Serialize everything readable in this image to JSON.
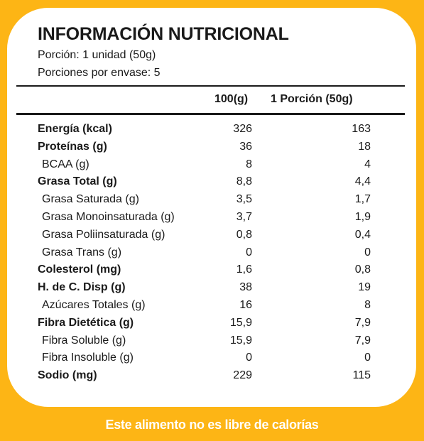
{
  "colors": {
    "background": "#FDB515",
    "card": "#ffffff",
    "text": "#1a1a1a",
    "footer_text": "#ffffff"
  },
  "label": {
    "title": "INFORMACIÓN NUTRICIONAL",
    "portion": "Porción: 1 unidad (50g)",
    "portions_per_package": "Porciones por envase: 5",
    "columns": {
      "per_100": "100(g)",
      "per_portion": "1 Porción (50g)"
    },
    "rows": [
      {
        "name": "Energía (kcal)",
        "per_100": "326",
        "per_portion": "163",
        "bold": true,
        "indent": false
      },
      {
        "name": "Proteínas (g)",
        "per_100": "36",
        "per_portion": "18",
        "bold": true,
        "indent": false
      },
      {
        "name": "BCAA (g)",
        "per_100": "8",
        "per_portion": "4",
        "bold": false,
        "indent": true
      },
      {
        "name": "Grasa Total (g)",
        "per_100": "8,8",
        "per_portion": "4,4",
        "bold": true,
        "indent": false
      },
      {
        "name": "Grasa Saturada (g)",
        "per_100": "3,5",
        "per_portion": "1,7",
        "bold": false,
        "indent": true
      },
      {
        "name": "Grasa Monoinsaturada (g)",
        "per_100": "3,7",
        "per_portion": "1,9",
        "bold": false,
        "indent": true
      },
      {
        "name": "Grasa Poliinsaturada (g)",
        "per_100": "0,8",
        "per_portion": "0,4",
        "bold": false,
        "indent": true
      },
      {
        "name": "Grasa Trans (g)",
        "per_100": "0",
        "per_portion": "0",
        "bold": false,
        "indent": true
      },
      {
        "name": "Colesterol (mg)",
        "per_100": "1,6",
        "per_portion": "0,8",
        "bold": true,
        "indent": false
      },
      {
        "name": "H. de C. Disp (g)",
        "per_100": "38",
        "per_portion": "19",
        "bold": true,
        "indent": false
      },
      {
        "name": "Azúcares Totales (g)",
        "per_100": "16",
        "per_portion": "8",
        "bold": false,
        "indent": true
      },
      {
        "name": "Fibra Dietética (g)",
        "per_100": "15,9",
        "per_portion": "7,9",
        "bold": true,
        "indent": false
      },
      {
        "name": "Fibra Soluble (g)",
        "per_100": "15,9",
        "per_portion": "7,9",
        "bold": false,
        "indent": true
      },
      {
        "name": "Fibra Insoluble (g)",
        "per_100": "0",
        "per_portion": "0",
        "bold": false,
        "indent": true
      },
      {
        "name": "Sodio (mg)",
        "per_100": "229",
        "per_portion": "115",
        "bold": true,
        "indent": false
      }
    ]
  },
  "footer": {
    "text": "Este alimento no es libre de calorías"
  }
}
